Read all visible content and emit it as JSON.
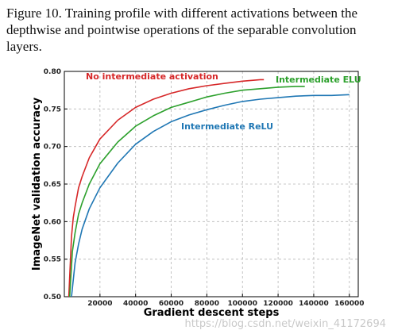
{
  "caption": "Figure 10. Training profile with different activations between the depthwise and pointwise operations of the separable convolution layers.",
  "watermark": "https://blog.csdn.net/weixin_41172694",
  "chart_data": {
    "type": "line",
    "title": "",
    "xlabel": "Gradient descent steps",
    "ylabel": "ImageNet validation accuracy",
    "xlim": [
      0,
      165000
    ],
    "ylim": [
      0.5,
      0.8
    ],
    "x_ticks": [
      20000,
      40000,
      60000,
      80000,
      100000,
      120000,
      140000,
      160000
    ],
    "y_ticks": [
      0.5,
      0.55,
      0.6,
      0.65,
      0.7,
      0.75,
      0.8
    ],
    "y_tick_labels": [
      "0.50",
      "0.55",
      "0.60",
      "0.65",
      "0.70",
      "0.75",
      "0.80"
    ],
    "grid": true,
    "legend": "none",
    "series": [
      {
        "name": "No intermediate activation",
        "color": "#d62728",
        "x": [
          2500,
          4000,
          5000,
          6000,
          8000,
          10000,
          14000,
          20000,
          30000,
          40000,
          50000,
          60000,
          70000,
          80000,
          90000,
          100000,
          110000,
          112000
        ],
        "y": [
          0.5,
          0.58,
          0.605,
          0.62,
          0.645,
          0.66,
          0.685,
          0.71,
          0.735,
          0.752,
          0.763,
          0.771,
          0.777,
          0.781,
          0.784,
          0.787,
          0.789,
          0.789
        ]
      },
      {
        "name": "Intermediate ELU",
        "color": "#2ca02c",
        "x": [
          3000,
          4500,
          6000,
          8000,
          10000,
          14000,
          20000,
          30000,
          40000,
          50000,
          60000,
          70000,
          80000,
          90000,
          100000,
          110000,
          120000,
          130000,
          135000
        ],
        "y": [
          0.5,
          0.56,
          0.585,
          0.61,
          0.625,
          0.65,
          0.677,
          0.706,
          0.727,
          0.741,
          0.752,
          0.759,
          0.766,
          0.771,
          0.775,
          0.777,
          0.779,
          0.78,
          0.78
        ]
      },
      {
        "name": "Intermediate ReLU",
        "color": "#1f77b4",
        "x": [
          4000,
          6000,
          8000,
          10000,
          14000,
          20000,
          30000,
          40000,
          50000,
          60000,
          70000,
          80000,
          90000,
          100000,
          110000,
          120000,
          130000,
          140000,
          150000,
          160000
        ],
        "y": [
          0.5,
          0.545,
          0.57,
          0.59,
          0.617,
          0.645,
          0.678,
          0.703,
          0.72,
          0.733,
          0.742,
          0.749,
          0.755,
          0.76,
          0.763,
          0.765,
          0.767,
          0.768,
          0.768,
          0.769
        ]
      }
    ]
  }
}
